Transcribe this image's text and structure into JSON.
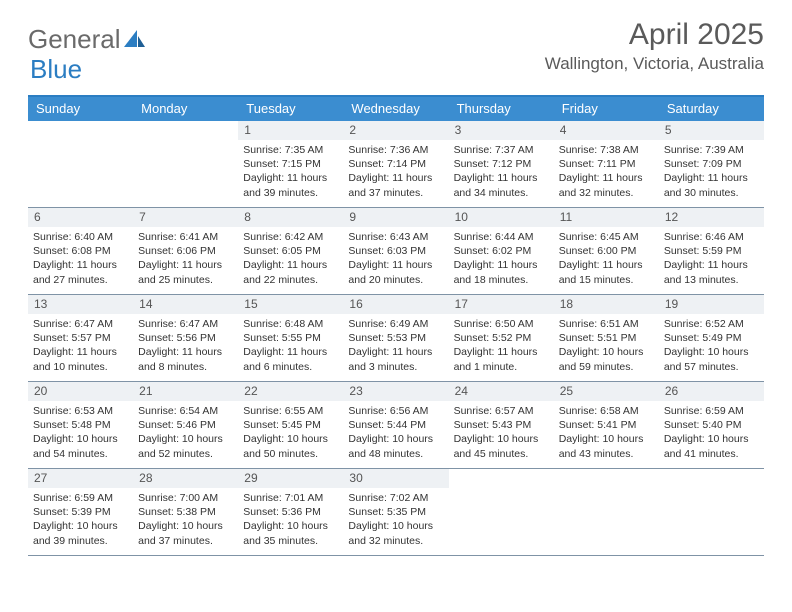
{
  "logo": {
    "text1": "General",
    "text2": "Blue"
  },
  "title": "April 2025",
  "location": "Wallington, Victoria, Australia",
  "colors": {
    "header_bar": "#3b8dd0",
    "border_top": "#2b7dc2",
    "row_border": "#7f93a6",
    "daynum_bg": "#eef1f4",
    "text": "#333333",
    "title_color": "#5a5a5a"
  },
  "dow": [
    "Sunday",
    "Monday",
    "Tuesday",
    "Wednesday",
    "Thursday",
    "Friday",
    "Saturday"
  ],
  "weeks": [
    [
      {
        "n": "",
        "sr": "",
        "ss": "",
        "dl": ""
      },
      {
        "n": "",
        "sr": "",
        "ss": "",
        "dl": ""
      },
      {
        "n": "1",
        "sr": "Sunrise: 7:35 AM",
        "ss": "Sunset: 7:15 PM",
        "dl": "Daylight: 11 hours and 39 minutes."
      },
      {
        "n": "2",
        "sr": "Sunrise: 7:36 AM",
        "ss": "Sunset: 7:14 PM",
        "dl": "Daylight: 11 hours and 37 minutes."
      },
      {
        "n": "3",
        "sr": "Sunrise: 7:37 AM",
        "ss": "Sunset: 7:12 PM",
        "dl": "Daylight: 11 hours and 34 minutes."
      },
      {
        "n": "4",
        "sr": "Sunrise: 7:38 AM",
        "ss": "Sunset: 7:11 PM",
        "dl": "Daylight: 11 hours and 32 minutes."
      },
      {
        "n": "5",
        "sr": "Sunrise: 7:39 AM",
        "ss": "Sunset: 7:09 PM",
        "dl": "Daylight: 11 hours and 30 minutes."
      }
    ],
    [
      {
        "n": "6",
        "sr": "Sunrise: 6:40 AM",
        "ss": "Sunset: 6:08 PM",
        "dl": "Daylight: 11 hours and 27 minutes."
      },
      {
        "n": "7",
        "sr": "Sunrise: 6:41 AM",
        "ss": "Sunset: 6:06 PM",
        "dl": "Daylight: 11 hours and 25 minutes."
      },
      {
        "n": "8",
        "sr": "Sunrise: 6:42 AM",
        "ss": "Sunset: 6:05 PM",
        "dl": "Daylight: 11 hours and 22 minutes."
      },
      {
        "n": "9",
        "sr": "Sunrise: 6:43 AM",
        "ss": "Sunset: 6:03 PM",
        "dl": "Daylight: 11 hours and 20 minutes."
      },
      {
        "n": "10",
        "sr": "Sunrise: 6:44 AM",
        "ss": "Sunset: 6:02 PM",
        "dl": "Daylight: 11 hours and 18 minutes."
      },
      {
        "n": "11",
        "sr": "Sunrise: 6:45 AM",
        "ss": "Sunset: 6:00 PM",
        "dl": "Daylight: 11 hours and 15 minutes."
      },
      {
        "n": "12",
        "sr": "Sunrise: 6:46 AM",
        "ss": "Sunset: 5:59 PM",
        "dl": "Daylight: 11 hours and 13 minutes."
      }
    ],
    [
      {
        "n": "13",
        "sr": "Sunrise: 6:47 AM",
        "ss": "Sunset: 5:57 PM",
        "dl": "Daylight: 11 hours and 10 minutes."
      },
      {
        "n": "14",
        "sr": "Sunrise: 6:47 AM",
        "ss": "Sunset: 5:56 PM",
        "dl": "Daylight: 11 hours and 8 minutes."
      },
      {
        "n": "15",
        "sr": "Sunrise: 6:48 AM",
        "ss": "Sunset: 5:55 PM",
        "dl": "Daylight: 11 hours and 6 minutes."
      },
      {
        "n": "16",
        "sr": "Sunrise: 6:49 AM",
        "ss": "Sunset: 5:53 PM",
        "dl": "Daylight: 11 hours and 3 minutes."
      },
      {
        "n": "17",
        "sr": "Sunrise: 6:50 AM",
        "ss": "Sunset: 5:52 PM",
        "dl": "Daylight: 11 hours and 1 minute."
      },
      {
        "n": "18",
        "sr": "Sunrise: 6:51 AM",
        "ss": "Sunset: 5:51 PM",
        "dl": "Daylight: 10 hours and 59 minutes."
      },
      {
        "n": "19",
        "sr": "Sunrise: 6:52 AM",
        "ss": "Sunset: 5:49 PM",
        "dl": "Daylight: 10 hours and 57 minutes."
      }
    ],
    [
      {
        "n": "20",
        "sr": "Sunrise: 6:53 AM",
        "ss": "Sunset: 5:48 PM",
        "dl": "Daylight: 10 hours and 54 minutes."
      },
      {
        "n": "21",
        "sr": "Sunrise: 6:54 AM",
        "ss": "Sunset: 5:46 PM",
        "dl": "Daylight: 10 hours and 52 minutes."
      },
      {
        "n": "22",
        "sr": "Sunrise: 6:55 AM",
        "ss": "Sunset: 5:45 PM",
        "dl": "Daylight: 10 hours and 50 minutes."
      },
      {
        "n": "23",
        "sr": "Sunrise: 6:56 AM",
        "ss": "Sunset: 5:44 PM",
        "dl": "Daylight: 10 hours and 48 minutes."
      },
      {
        "n": "24",
        "sr": "Sunrise: 6:57 AM",
        "ss": "Sunset: 5:43 PM",
        "dl": "Daylight: 10 hours and 45 minutes."
      },
      {
        "n": "25",
        "sr": "Sunrise: 6:58 AM",
        "ss": "Sunset: 5:41 PM",
        "dl": "Daylight: 10 hours and 43 minutes."
      },
      {
        "n": "26",
        "sr": "Sunrise: 6:59 AM",
        "ss": "Sunset: 5:40 PM",
        "dl": "Daylight: 10 hours and 41 minutes."
      }
    ],
    [
      {
        "n": "27",
        "sr": "Sunrise: 6:59 AM",
        "ss": "Sunset: 5:39 PM",
        "dl": "Daylight: 10 hours and 39 minutes."
      },
      {
        "n": "28",
        "sr": "Sunrise: 7:00 AM",
        "ss": "Sunset: 5:38 PM",
        "dl": "Daylight: 10 hours and 37 minutes."
      },
      {
        "n": "29",
        "sr": "Sunrise: 7:01 AM",
        "ss": "Sunset: 5:36 PM",
        "dl": "Daylight: 10 hours and 35 minutes."
      },
      {
        "n": "30",
        "sr": "Sunrise: 7:02 AM",
        "ss": "Sunset: 5:35 PM",
        "dl": "Daylight: 10 hours and 32 minutes."
      },
      {
        "n": "",
        "sr": "",
        "ss": "",
        "dl": ""
      },
      {
        "n": "",
        "sr": "",
        "ss": "",
        "dl": ""
      },
      {
        "n": "",
        "sr": "",
        "ss": "",
        "dl": ""
      }
    ]
  ]
}
